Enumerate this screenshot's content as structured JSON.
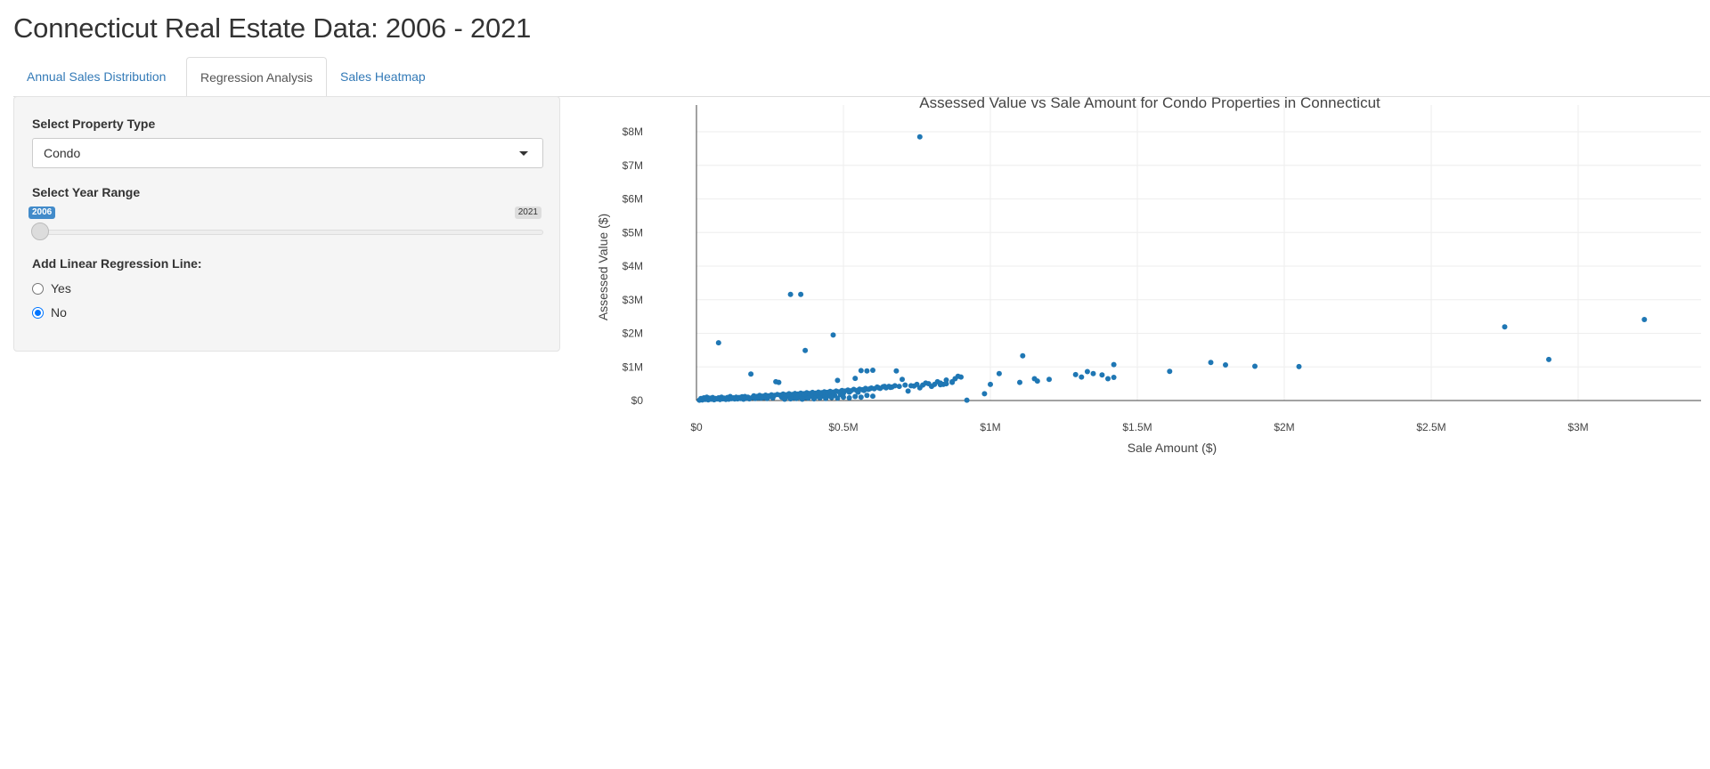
{
  "page": {
    "title": "Connecticut Real Estate Data: 2006 - 2021"
  },
  "tabs": [
    {
      "label": "Annual Sales Distribution",
      "active": false
    },
    {
      "label": "Regression Analysis",
      "active": true
    },
    {
      "label": "Sales Heatmap",
      "active": false
    }
  ],
  "sidebar": {
    "property_label": "Select Property Type",
    "property_value": "Condo",
    "year_label": "Select Year Range",
    "year_from": "2006",
    "year_to": "2021",
    "regression_label": "Add Linear Regression Line:",
    "options": [
      {
        "label": "Yes",
        "checked": false
      },
      {
        "label": "No",
        "checked": true
      }
    ]
  },
  "colors": {
    "accent": "#337ab7",
    "marker": "#1f77b4",
    "slider_label": "#428bca",
    "radio": "#0075ff"
  },
  "chart_data": {
    "type": "scatter",
    "title": "Assessed Value vs Sale Amount for Condo Properties in Connecticut",
    "xlabel": "Sale Amount ($)",
    "ylabel": "Assessed Value ($)",
    "xlim": [
      0,
      3420000
    ],
    "ylim": [
      0,
      8000000
    ],
    "xticks": [
      {
        "value": 0,
        "label": "$0"
      },
      {
        "value": 500000,
        "label": "$0.5M"
      },
      {
        "value": 1000000,
        "label": "$1M"
      },
      {
        "value": 1500000,
        "label": "$1.5M"
      },
      {
        "value": 2000000,
        "label": "$2M"
      },
      {
        "value": 2500000,
        "label": "$2.5M"
      },
      {
        "value": 3000000,
        "label": "$3M"
      }
    ],
    "yticks": [
      {
        "value": 0,
        "label": "$0"
      },
      {
        "value": 1000000,
        "label": "$1M"
      },
      {
        "value": 2000000,
        "label": "$2M"
      },
      {
        "value": 3000000,
        "label": "$3M"
      },
      {
        "value": 4000000,
        "label": "$4M"
      },
      {
        "value": 5000000,
        "label": "$5M"
      },
      {
        "value": 6000000,
        "label": "$6M"
      },
      {
        "value": 7000000,
        "label": "$7M"
      },
      {
        "value": 8000000,
        "label": "$8M"
      }
    ],
    "grid": true,
    "points": [
      [
        760000,
        7850000
      ],
      [
        320000,
        3160000
      ],
      [
        355000,
        3160000
      ],
      [
        465000,
        1950000
      ],
      [
        370000,
        1490000
      ],
      [
        75000,
        1720000
      ],
      [
        2750000,
        2190000
      ],
      [
        3225000,
        2410000
      ],
      [
        2900000,
        1220000
      ],
      [
        1110000,
        1330000
      ],
      [
        1750000,
        1130000
      ],
      [
        1800000,
        1060000
      ],
      [
        1900000,
        1020000
      ],
      [
        2050000,
        1010000
      ],
      [
        1610000,
        870000
      ],
      [
        1420000,
        1070000
      ],
      [
        1420000,
        690000
      ],
      [
        1400000,
        650000
      ],
      [
        1380000,
        760000
      ],
      [
        1350000,
        800000
      ],
      [
        1330000,
        860000
      ],
      [
        1310000,
        700000
      ],
      [
        1290000,
        770000
      ],
      [
        1200000,
        630000
      ],
      [
        1160000,
        580000
      ],
      [
        1150000,
        650000
      ],
      [
        1100000,
        540000
      ],
      [
        1030000,
        800000
      ],
      [
        1000000,
        480000
      ],
      [
        980000,
        200000
      ],
      [
        920000,
        10000
      ],
      [
        900000,
        700000
      ],
      [
        890000,
        720000
      ],
      [
        880000,
        650000
      ],
      [
        870000,
        540000
      ],
      [
        850000,
        610000
      ],
      [
        840000,
        480000
      ],
      [
        830000,
        470000
      ],
      [
        820000,
        560000
      ],
      [
        800000,
        420000
      ],
      [
        780000,
        520000
      ],
      [
        760000,
        380000
      ],
      [
        740000,
        430000
      ],
      [
        720000,
        280000
      ],
      [
        700000,
        630000
      ],
      [
        680000,
        880000
      ],
      [
        660000,
        390000
      ],
      [
        640000,
        420000
      ],
      [
        620000,
        380000
      ],
      [
        600000,
        900000
      ],
      [
        590000,
        350000
      ],
      [
        580000,
        880000
      ],
      [
        570000,
        300000
      ],
      [
        560000,
        890000
      ],
      [
        550000,
        250000
      ],
      [
        540000,
        660000
      ],
      [
        520000,
        250000
      ],
      [
        500000,
        220000
      ],
      [
        490000,
        180000
      ],
      [
        480000,
        600000
      ],
      [
        470000,
        160000
      ],
      [
        460000,
        150000
      ],
      [
        450000,
        140000
      ],
      [
        440000,
        200000
      ],
      [
        430000,
        130000
      ],
      [
        420000,
        160000
      ],
      [
        410000,
        120000
      ],
      [
        400000,
        110000
      ],
      [
        390000,
        130000
      ],
      [
        380000,
        100000
      ],
      [
        370000,
        90000
      ],
      [
        360000,
        110000
      ],
      [
        350000,
        100000
      ],
      [
        340000,
        120000
      ],
      [
        330000,
        80000
      ],
      [
        320000,
        90000
      ],
      [
        310000,
        110000
      ],
      [
        300000,
        70000
      ],
      [
        290000,
        100000
      ],
      [
        280000,
        540000
      ],
      [
        270000,
        560000
      ],
      [
        260000,
        80000
      ],
      [
        250000,
        120000
      ],
      [
        240000,
        60000
      ],
      [
        230000,
        90000
      ],
      [
        220000,
        70000
      ],
      [
        210000,
        80000
      ],
      [
        200000,
        60000
      ],
      [
        190000,
        90000
      ],
      [
        185000,
        790000
      ],
      [
        180000,
        50000
      ],
      [
        170000,
        70000
      ],
      [
        160000,
        40000
      ],
      [
        150000,
        60000
      ],
      [
        140000,
        50000
      ],
      [
        130000,
        45000
      ],
      [
        120000,
        55000
      ],
      [
        110000,
        40000
      ],
      [
        100000,
        35000
      ],
      [
        90000,
        50000
      ],
      [
        80000,
        30000
      ],
      [
        70000,
        45000
      ],
      [
        60000,
        25000
      ],
      [
        50000,
        40000
      ],
      [
        40000,
        20000
      ],
      [
        30000,
        35000
      ],
      [
        20000,
        15000
      ],
      [
        10000,
        10000
      ],
      [
        15000,
        60000
      ],
      [
        25000,
        80000
      ],
      [
        35000,
        100000
      ],
      [
        45000,
        70000
      ],
      [
        55000,
        90000
      ],
      [
        65000,
        60000
      ],
      [
        75000,
        80000
      ],
      [
        85000,
        100000
      ],
      [
        95000,
        70000
      ],
      [
        105000,
        90000
      ],
      [
        115000,
        120000
      ],
      [
        125000,
        80000
      ],
      [
        135000,
        100000
      ],
      [
        145000,
        90000
      ],
      [
        155000,
        110000
      ],
      [
        165000,
        120000
      ],
      [
        175000,
        100000
      ],
      [
        195000,
        140000
      ],
      [
        205000,
        120000
      ],
      [
        215000,
        150000
      ],
      [
        225000,
        130000
      ],
      [
        235000,
        160000
      ],
      [
        245000,
        140000
      ],
      [
        255000,
        170000
      ],
      [
        265000,
        150000
      ],
      [
        275000,
        180000
      ],
      [
        285000,
        160000
      ],
      [
        295000,
        190000
      ],
      [
        305000,
        170000
      ],
      [
        315000,
        200000
      ],
      [
        325000,
        180000
      ],
      [
        335000,
        210000
      ],
      [
        345000,
        190000
      ],
      [
        355000,
        220000
      ],
      [
        365000,
        200000
      ],
      [
        375000,
        230000
      ],
      [
        385000,
        210000
      ],
      [
        395000,
        240000
      ],
      [
        405000,
        220000
      ],
      [
        415000,
        250000
      ],
      [
        425000,
        230000
      ],
      [
        435000,
        260000
      ],
      [
        445000,
        240000
      ],
      [
        455000,
        270000
      ],
      [
        465000,
        250000
      ],
      [
        475000,
        280000
      ],
      [
        485000,
        260000
      ],
      [
        495000,
        300000
      ],
      [
        505000,
        280000
      ],
      [
        515000,
        310000
      ],
      [
        525000,
        290000
      ],
      [
        535000,
        330000
      ],
      [
        545000,
        300000
      ],
      [
        555000,
        340000
      ],
      [
        565000,
        320000
      ],
      [
        575000,
        360000
      ],
      [
        585000,
        330000
      ],
      [
        595000,
        370000
      ],
      [
        605000,
        350000
      ],
      [
        615000,
        400000
      ],
      [
        625000,
        360000
      ],
      [
        635000,
        410000
      ],
      [
        645000,
        380000
      ],
      [
        655000,
        420000
      ],
      [
        665000,
        400000
      ],
      [
        675000,
        440000
      ],
      [
        690000,
        420000
      ],
      [
        710000,
        460000
      ],
      [
        730000,
        440000
      ],
      [
        750000,
        480000
      ],
      [
        770000,
        460000
      ],
      [
        790000,
        500000
      ],
      [
        810000,
        480000
      ],
      [
        830000,
        520000
      ],
      [
        850000,
        500000
      ],
      [
        870000,
        560000
      ],
      [
        300000,
        40000
      ],
      [
        320000,
        50000
      ],
      [
        340000,
        60000
      ],
      [
        360000,
        40000
      ],
      [
        380000,
        70000
      ],
      [
        400000,
        50000
      ],
      [
        420000,
        80000
      ],
      [
        440000,
        60000
      ],
      [
        460000,
        90000
      ],
      [
        480000,
        70000
      ],
      [
        500000,
        100000
      ],
      [
        520000,
        80000
      ],
      [
        540000,
        120000
      ],
      [
        560000,
        100000
      ],
      [
        580000,
        150000
      ],
      [
        600000,
        130000
      ]
    ]
  }
}
